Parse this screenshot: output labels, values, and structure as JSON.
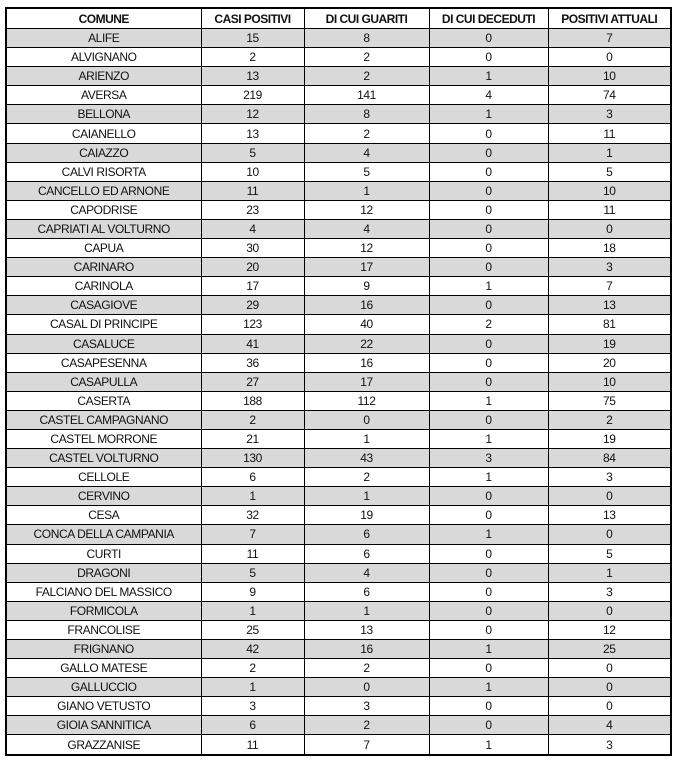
{
  "headers": [
    "COMUNE",
    "CASI POSITIVI",
    "DI CUI GUARITI",
    "DI CUI DECEDUTI",
    "POSITIVI ATTUALI"
  ],
  "rows": [
    [
      "ALIFE",
      "15",
      "8",
      "0",
      "7"
    ],
    [
      "ALVIGNANO",
      "2",
      "2",
      "0",
      "0"
    ],
    [
      "ARIENZO",
      "13",
      "2",
      "1",
      "10"
    ],
    [
      "AVERSA",
      "219",
      "141",
      "4",
      "74"
    ],
    [
      "BELLONA",
      "12",
      "8",
      "1",
      "3"
    ],
    [
      "CAIANELLO",
      "13",
      "2",
      "0",
      "11"
    ],
    [
      "CAIAZZO",
      "5",
      "4",
      "0",
      "1"
    ],
    [
      "CALVI RISORTA",
      "10",
      "5",
      "0",
      "5"
    ],
    [
      "CANCELLO ED ARNONE",
      "11",
      "1",
      "0",
      "10"
    ],
    [
      "CAPODRISE",
      "23",
      "12",
      "0",
      "11"
    ],
    [
      "CAPRIATI AL VOLTURNO",
      "4",
      "4",
      "0",
      "0"
    ],
    [
      "CAPUA",
      "30",
      "12",
      "0",
      "18"
    ],
    [
      "CARINARO",
      "20",
      "17",
      "0",
      "3"
    ],
    [
      "CARINOLA",
      "17",
      "9",
      "1",
      "7"
    ],
    [
      "CASAGIOVE",
      "29",
      "16",
      "0",
      "13"
    ],
    [
      "CASAL DI PRINCIPE",
      "123",
      "40",
      "2",
      "81"
    ],
    [
      "CASALUCE",
      "41",
      "22",
      "0",
      "19"
    ],
    [
      "CASAPESENNA",
      "36",
      "16",
      "0",
      "20"
    ],
    [
      "CASAPULLA",
      "27",
      "17",
      "0",
      "10"
    ],
    [
      "CASERTA",
      "188",
      "112",
      "1",
      "75"
    ],
    [
      "CASTEL CAMPAGNANO",
      "2",
      "0",
      "0",
      "2"
    ],
    [
      "CASTEL MORRONE",
      "21",
      "1",
      "1",
      "19"
    ],
    [
      "CASTEL VOLTURNO",
      "130",
      "43",
      "3",
      "84"
    ],
    [
      "CELLOLE",
      "6",
      "2",
      "1",
      "3"
    ],
    [
      "CERVINO",
      "1",
      "1",
      "0",
      "0"
    ],
    [
      "CESA",
      "32",
      "19",
      "0",
      "13"
    ],
    [
      "CONCA DELLA CAMPANIA",
      "7",
      "6",
      "1",
      "0"
    ],
    [
      "CURTI",
      "11",
      "6",
      "0",
      "5"
    ],
    [
      "DRAGONI",
      "5",
      "4",
      "0",
      "1"
    ],
    [
      "FALCIANO DEL MASSICO",
      "9",
      "6",
      "0",
      "3"
    ],
    [
      "FORMICOLA",
      "1",
      "1",
      "0",
      "0"
    ],
    [
      "FRANCOLISE",
      "25",
      "13",
      "0",
      "12"
    ],
    [
      "FRIGNANO",
      "42",
      "16",
      "1",
      "25"
    ],
    [
      "GALLO MATESE",
      "2",
      "2",
      "0",
      "0"
    ],
    [
      "GALLUCCIO",
      "1",
      "0",
      "1",
      "0"
    ],
    [
      "GIANO VETUSTO",
      "3",
      "3",
      "0",
      "0"
    ],
    [
      "GIOIA SANNITICA",
      "6",
      "2",
      "0",
      "4"
    ],
    [
      "GRAZZANISE",
      "11",
      "7",
      "1",
      "3"
    ]
  ],
  "colors": {
    "stripe": "#d9d9d9",
    "border": "#000000"
  }
}
